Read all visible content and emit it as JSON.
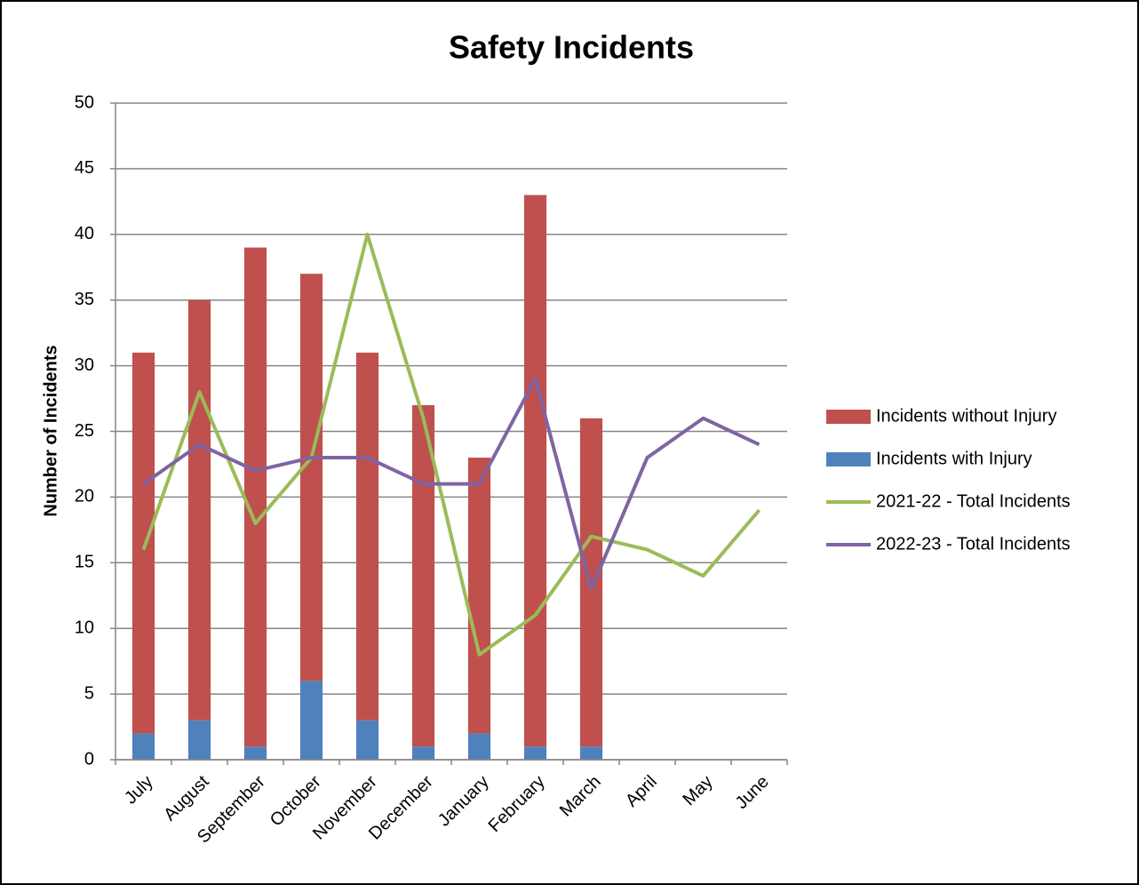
{
  "chart_data": {
    "type": "bar",
    "stacked": true,
    "title": "Safety Incidents",
    "y_label": "Number  of Incidents",
    "categories": [
      "July",
      "August",
      "September",
      "October",
      "November",
      "December",
      "January",
      "February",
      "March",
      "April",
      "May",
      "June"
    ],
    "series": [
      {
        "name": "Incidents without Injury",
        "type": "bar",
        "color": "#c0504d",
        "values": [
          29,
          32,
          38,
          31,
          28,
          26,
          21,
          42,
          25,
          null,
          null,
          null
        ]
      },
      {
        "name": "Incidents with Injury",
        "type": "bar",
        "color": "#4f81bd",
        "values": [
          2,
          3,
          1,
          6,
          3,
          1,
          2,
          1,
          1,
          null,
          null,
          null
        ]
      },
      {
        "name": "2021-22 - Total Incidents",
        "type": "line",
        "color": "#9bbb59",
        "values": [
          16,
          28,
          18,
          23,
          40,
          26,
          8,
          11,
          17,
          16,
          14,
          19
        ]
      },
      {
        "name": "2022-23 - Total Incidents",
        "type": "line",
        "color": "#8064a2",
        "values": [
          21,
          24,
          22,
          23,
          23,
          21,
          21,
          29,
          13,
          23,
          26,
          24
        ]
      }
    ],
    "ylim": [
      0,
      50
    ],
    "yticks": [
      0,
      5,
      10,
      15,
      20,
      25,
      30,
      35,
      40,
      45,
      50
    ],
    "grid": true,
    "legend": "right"
  }
}
